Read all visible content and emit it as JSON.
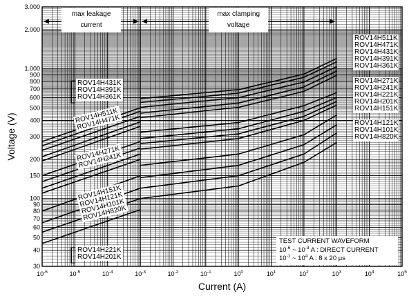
{
  "chart_data": {
    "type": "line",
    "xscale": "log",
    "yscale": "log",
    "xlim": [
      1e-06,
      100000
    ],
    "ylim": [
      30,
      3000
    ],
    "grid": true,
    "xlabel": "Current (A)",
    "ylabel": "Voltage (V)",
    "x_ticks": [
      {
        "v": 1e-06,
        "b": "10",
        "e": "-6"
      },
      {
        "v": 1e-05,
        "b": "10",
        "e": "-5"
      },
      {
        "v": 0.0001,
        "b": "10",
        "e": "-4"
      },
      {
        "v": 0.001,
        "b": "10",
        "e": "-3"
      },
      {
        "v": 0.01,
        "b": "10",
        "e": "-2"
      },
      {
        "v": 0.1,
        "b": "10",
        "e": "-1"
      },
      {
        "v": 1,
        "b": "10",
        "e": "0"
      },
      {
        "v": 10,
        "b": "10",
        "e": "1"
      },
      {
        "v": 100,
        "b": "10",
        "e": "2"
      },
      {
        "v": 1000,
        "b": "10",
        "e": "3"
      },
      {
        "v": 10000,
        "b": "10",
        "e": "4"
      },
      {
        "v": 100000,
        "b": "10",
        "e": "5"
      }
    ],
    "y_ticks": [
      {
        "v": 3000,
        "label": "3.000"
      },
      {
        "v": 2000,
        "label": "2.000"
      },
      {
        "v": 1000,
        "label": "1.000"
      },
      {
        "v": 900,
        "label": "900"
      },
      {
        "v": 800,
        "label": "800"
      },
      {
        "v": 700,
        "label": "700"
      },
      {
        "v": 600,
        "label": "600"
      },
      {
        "v": 500,
        "label": "500"
      },
      {
        "v": 400,
        "label": "400"
      },
      {
        "v": 300,
        "label": "300"
      },
      {
        "v": 200,
        "label": "200"
      },
      {
        "v": 150,
        "label": "150"
      },
      {
        "v": 100,
        "label": "100"
      },
      {
        "v": 90,
        "label": "90"
      },
      {
        "v": 80,
        "label": "80"
      },
      {
        "v": 70,
        "label": "70"
      },
      {
        "v": 60,
        "label": "60"
      },
      {
        "v": 50,
        "label": "50"
      },
      {
        "v": 40,
        "label": "40"
      },
      {
        "v": 30,
        "label": "30"
      }
    ],
    "regions": [
      {
        "label": [
          "max leakage",
          "current"
        ],
        "from": 1e-06,
        "to": 0.001
      },
      {
        "label": [
          "max clamping",
          "voltage"
        ],
        "from": 0.001,
        "to": 1000
      }
    ],
    "annotation": {
      "title": "TEST CURRENT WAVEFORM",
      "lines": [
        {
          "a": "10",
          "ae": "-6",
          "b": "10",
          "be": "-3",
          "text": " A : DIRECT CURRENT"
        },
        {
          "a": "10",
          "ae": "-1",
          "b": "10",
          "be": "4",
          "text": " A : 8 x 20 μs"
        }
      ]
    },
    "series": [
      {
        "name": "ROV14H511K",
        "leakage": [
          [
            1e-06,
            275
          ],
          [
            0.001,
            500
          ]
        ],
        "clamp": [
          [
            0.001,
            590
          ],
          [
            1,
            690
          ],
          [
            100,
            910
          ],
          [
            1000,
            1200
          ]
        ]
      },
      {
        "name": "ROV14H471K",
        "leakage": [
          [
            1e-06,
            255
          ],
          [
            0.001,
            470
          ]
        ],
        "clamp": [
          [
            0.001,
            550
          ],
          [
            1,
            650
          ],
          [
            100,
            860
          ],
          [
            1000,
            1130
          ]
        ]
      },
      {
        "name": "ROV14H431K",
        "leakage": [
          [
            1e-06,
            235
          ],
          [
            0.001,
            430
          ]
        ],
        "clamp": [
          [
            0.001,
            505
          ],
          [
            1,
            600
          ],
          [
            100,
            790
          ],
          [
            1000,
            1040
          ]
        ]
      },
      {
        "name": "ROV14H391K",
        "leakage": [
          [
            1e-06,
            210
          ],
          [
            0.001,
            390
          ]
        ],
        "clamp": [
          [
            0.001,
            455
          ],
          [
            1,
            545
          ],
          [
            100,
            725
          ],
          [
            1000,
            960
          ]
        ]
      },
      {
        "name": "ROV14H361K",
        "leakage": [
          [
            1e-06,
            195
          ],
          [
            0.001,
            360
          ]
        ],
        "clamp": [
          [
            0.001,
            420
          ],
          [
            1,
            505
          ],
          [
            100,
            670
          ],
          [
            1000,
            890
          ]
        ]
      },
      {
        "name": "ROV14H271K",
        "leakage": [
          [
            1e-06,
            150
          ],
          [
            0.001,
            275
          ]
        ],
        "clamp": [
          [
            0.001,
            325
          ],
          [
            1,
            385
          ],
          [
            100,
            520
          ],
          [
            1000,
            655
          ]
        ]
      },
      {
        "name": "ROV14H241K",
        "leakage": [
          [
            1e-06,
            135
          ],
          [
            0.001,
            245
          ]
        ],
        "clamp": [
          [
            0.001,
            290
          ],
          [
            1,
            345
          ],
          [
            100,
            470
          ],
          [
            1000,
            600
          ]
        ]
      },
      {
        "name": "ROV14H221K",
        "leakage": [
          [
            1e-06,
            120
          ],
          [
            0.001,
            220
          ]
        ],
        "clamp": [
          [
            0.001,
            265
          ],
          [
            1,
            315
          ],
          [
            100,
            430
          ],
          [
            1000,
            560
          ]
        ]
      },
      {
        "name": "ROV14H201K",
        "leakage": [
          [
            1e-06,
            110
          ],
          [
            0.001,
            200
          ]
        ],
        "clamp": [
          [
            0.001,
            240
          ],
          [
            1,
            290
          ],
          [
            100,
            400
          ],
          [
            1000,
            525
          ]
        ]
      },
      {
        "name": "ROV14H151K",
        "leakage": [
          [
            1e-06,
            80
          ],
          [
            0.001,
            150
          ]
        ],
        "clamp": [
          [
            0.001,
            180
          ],
          [
            1,
            220
          ],
          [
            100,
            310
          ],
          [
            1000,
            440
          ]
        ]
      },
      {
        "name": "ROV14H121K",
        "leakage": [
          [
            1e-06,
            65
          ],
          [
            0.001,
            120
          ]
        ],
        "clamp": [
          [
            0.001,
            145
          ],
          [
            1,
            180
          ],
          [
            100,
            260
          ],
          [
            1000,
            370
          ]
        ]
      },
      {
        "name": "ROV14H101K",
        "leakage": [
          [
            1e-06,
            55
          ],
          [
            0.001,
            100
          ]
        ],
        "clamp": [
          [
            0.001,
            120
          ],
          [
            1,
            150
          ],
          [
            100,
            220
          ],
          [
            1000,
            320
          ]
        ]
      },
      {
        "name": "ROV14H820K",
        "leakage": [
          [
            1e-06,
            45
          ],
          [
            0.001,
            82
          ]
        ],
        "clamp": [
          [
            0.001,
            100
          ],
          [
            1,
            125
          ],
          [
            100,
            190
          ],
          [
            1000,
            270
          ]
        ]
      }
    ],
    "left_label_groups": [
      {
        "names": [
          "ROV14H431K",
          "ROV14H391K",
          "ROV14H361K"
        ],
        "style": "bracket"
      },
      {
        "names": [
          "ROV14H511K",
          "ROV14H471K"
        ],
        "style": "slant"
      },
      {
        "names": [
          "ROV14H271K",
          "ROV14H241K"
        ],
        "style": "slant"
      },
      {
        "names": [
          "ROV14H151K",
          "ROV14H121K",
          "ROV14H101K",
          "ROV14H820K"
        ],
        "style": "slant"
      },
      {
        "names": [
          "ROV14H221K",
          "ROV14H201K"
        ],
        "style": "bracket"
      }
    ],
    "right_label_groups": [
      [
        "ROV14H511K",
        "ROV14H471K",
        "ROV14H431K",
        "ROV14H391K",
        "ROV14H361K"
      ],
      [
        "ROV14H271K",
        "ROV14H241K",
        "ROV14H221K",
        "ROV14H201K",
        "ROV14H151K"
      ],
      [
        "ROV14H121K",
        "ROV14H101K",
        "ROV14H820K"
      ]
    ]
  }
}
